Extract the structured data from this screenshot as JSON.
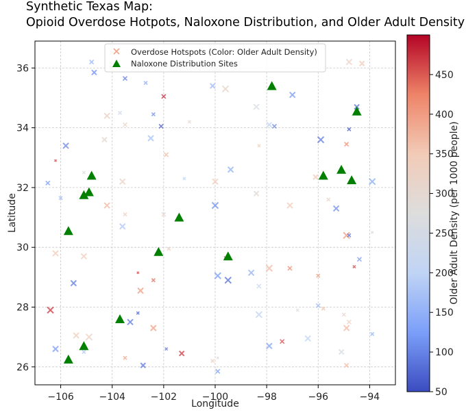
{
  "chart_data": {
    "type": "scatter",
    "title_line1": "Synthetic Texas Map:",
    "title_line2": "Opioid Overdose Hotpots, Naloxone Distribution, and Older Adult Density",
    "xlabel": "Longitude",
    "ylabel": "Latitude",
    "xlim": [
      -107.0,
      -93.0
    ],
    "ylim": [
      25.4,
      36.9
    ],
    "xticks": [
      -106,
      -104,
      -102,
      -100,
      -98,
      -96,
      -94
    ],
    "xtick_labels": [
      "−106",
      "−104",
      "−102",
      "−100",
      "−98",
      "−96",
      "−94"
    ],
    "yticks": [
      26,
      28,
      30,
      32,
      34,
      36
    ],
    "ytick_labels": [
      "26",
      "28",
      "30",
      "32",
      "34",
      "36"
    ],
    "grid": true,
    "legend": {
      "position": "top",
      "hotspots_label": "Overdose Hotspots (Color: Older Adult Density)",
      "naloxone_label": "Naloxone Distribution Sites"
    },
    "colorbar": {
      "label": "Older Adult Density (per 1000 people)",
      "min": 50,
      "max": 500,
      "ticks": [
        50,
        100,
        150,
        200,
        250,
        300,
        350,
        400,
        450
      ],
      "tick_labels": [
        "50",
        "100",
        "150",
        "200",
        "250",
        "300",
        "350",
        "400",
        "450"
      ],
      "colormap": [
        "#3b4cc0",
        "#7b9ff9",
        "#c0d4f5",
        "#dddddd",
        "#f2cbb7",
        "#ee8468",
        "#b40426"
      ]
    },
    "series": [
      {
        "name": "Overdose Hotspots",
        "marker": "x",
        "points": [
          {
            "x": -104.8,
            "y": 36.2,
            "d": 150,
            "s": 6
          },
          {
            "x": -104.7,
            "y": 35.85,
            "d": 110,
            "s": 7
          },
          {
            "x": -103.5,
            "y": 35.65,
            "d": 90,
            "s": 6
          },
          {
            "x": -102.7,
            "y": 35.5,
            "d": 140,
            "s": 5
          },
          {
            "x": -102.0,
            "y": 35.05,
            "d": 480,
            "s": 6
          },
          {
            "x": -100.1,
            "y": 35.4,
            "d": 160,
            "s": 7
          },
          {
            "x": -99.6,
            "y": 35.3,
            "d": 320,
            "s": 9
          },
          {
            "x": -98.4,
            "y": 34.7,
            "d": 260,
            "s": 8
          },
          {
            "x": -97.0,
            "y": 35.1,
            "d": 120,
            "s": 8
          },
          {
            "x": -94.8,
            "y": 36.2,
            "d": 320,
            "s": 8
          },
          {
            "x": -94.3,
            "y": 36.15,
            "d": 350,
            "s": 7
          },
          {
            "x": -94.5,
            "y": 34.7,
            "d": 80,
            "s": 7
          },
          {
            "x": -104.2,
            "y": 34.4,
            "d": 330,
            "s": 8
          },
          {
            "x": -103.7,
            "y": 34.5,
            "d": 230,
            "s": 5
          },
          {
            "x": -103.5,
            "y": 34.1,
            "d": 320,
            "s": 6
          },
          {
            "x": -102.4,
            "y": 34.45,
            "d": 110,
            "s": 5
          },
          {
            "x": -102.1,
            "y": 34.05,
            "d": 60,
            "s": 6
          },
          {
            "x": -102.5,
            "y": 33.65,
            "d": 170,
            "s": 8
          },
          {
            "x": -101.0,
            "y": 34.2,
            "d": 300,
            "s": 4
          },
          {
            "x": -97.9,
            "y": 34.1,
            "d": 200,
            "s": 7
          },
          {
            "x": -97.7,
            "y": 34.05,
            "d": 100,
            "s": 6
          },
          {
            "x": -94.8,
            "y": 33.95,
            "d": 60,
            "s": 5
          },
          {
            "x": -105.8,
            "y": 33.4,
            "d": 100,
            "s": 8
          },
          {
            "x": -104.3,
            "y": 33.6,
            "d": 300,
            "s": 7
          },
          {
            "x": -101.9,
            "y": 33.1,
            "d": 370,
            "s": 6
          },
          {
            "x": -98.3,
            "y": 33.4,
            "d": 330,
            "s": 4
          },
          {
            "x": -95.9,
            "y": 33.6,
            "d": 90,
            "s": 9
          },
          {
            "x": -94.9,
            "y": 33.45,
            "d": 420,
            "s": 6
          },
          {
            "x": -106.2,
            "y": 32.9,
            "d": 460,
            "s": 3
          },
          {
            "x": -105.1,
            "y": 32.5,
            "d": 280,
            "s": 4
          },
          {
            "x": -106.5,
            "y": 32.15,
            "d": 120,
            "s": 6
          },
          {
            "x": -106.0,
            "y": 31.65,
            "d": 160,
            "s": 5
          },
          {
            "x": -103.6,
            "y": 32.2,
            "d": 330,
            "s": 8
          },
          {
            "x": -101.2,
            "y": 32.3,
            "d": 200,
            "s": 4
          },
          {
            "x": -100.0,
            "y": 32.2,
            "d": 340,
            "s": 8
          },
          {
            "x": -99.4,
            "y": 32.6,
            "d": 150,
            "s": 8
          },
          {
            "x": -96.1,
            "y": 32.35,
            "d": 350,
            "s": 7
          },
          {
            "x": -93.9,
            "y": 32.2,
            "d": 140,
            "s": 9
          },
          {
            "x": -104.2,
            "y": 31.4,
            "d": 370,
            "s": 8
          },
          {
            "x": -103.5,
            "y": 31.1,
            "d": 330,
            "s": 5
          },
          {
            "x": -103.6,
            "y": 30.7,
            "d": 180,
            "s": 8
          },
          {
            "x": -102.0,
            "y": 31.1,
            "d": 310,
            "s": 6
          },
          {
            "x": -100.0,
            "y": 31.4,
            "d": 110,
            "s": 9
          },
          {
            "x": -98.4,
            "y": 31.8,
            "d": 290,
            "s": 7
          },
          {
            "x": -97.1,
            "y": 31.4,
            "d": 350,
            "s": 8
          },
          {
            "x": -95.6,
            "y": 31.6,
            "d": 320,
            "s": 5
          },
          {
            "x": -95.3,
            "y": 31.3,
            "d": 110,
            "s": 8
          },
          {
            "x": -94.9,
            "y": 30.4,
            "d": 400,
            "s": 9
          },
          {
            "x": -94.8,
            "y": 30.4,
            "d": 80,
            "s": 5
          },
          {
            "x": -93.9,
            "y": 30.5,
            "d": 300,
            "s": 3
          },
          {
            "x": -106.2,
            "y": 29.8,
            "d": 350,
            "s": 8
          },
          {
            "x": -105.1,
            "y": 29.7,
            "d": 340,
            "s": 8
          },
          {
            "x": -101.8,
            "y": 29.95,
            "d": 330,
            "s": 5
          },
          {
            "x": -99.6,
            "y": 29.65,
            "d": 460,
            "s": 4
          },
          {
            "x": -98.6,
            "y": 29.15,
            "d": 150,
            "s": 8
          },
          {
            "x": -97.9,
            "y": 29.3,
            "d": 370,
            "s": 9
          },
          {
            "x": -97.1,
            "y": 29.3,
            "d": 420,
            "s": 6
          },
          {
            "x": -96.0,
            "y": 29.05,
            "d": 400,
            "s": 5
          },
          {
            "x": -94.4,
            "y": 29.6,
            "d": 120,
            "s": 6
          },
          {
            "x": -94.6,
            "y": 29.35,
            "d": 460,
            "s": 4
          },
          {
            "x": -103.0,
            "y": 29.15,
            "d": 460,
            "s": 3
          },
          {
            "x": -105.5,
            "y": 28.8,
            "d": 90,
            "s": 8
          },
          {
            "x": -102.9,
            "y": 28.55,
            "d": 400,
            "s": 8
          },
          {
            "x": -102.4,
            "y": 28.9,
            "d": 440,
            "s": 5
          },
          {
            "x": -99.9,
            "y": 29.05,
            "d": 120,
            "s": 9
          },
          {
            "x": -99.5,
            "y": 28.9,
            "d": 80,
            "s": 9
          },
          {
            "x": -98.3,
            "y": 28.7,
            "d": 220,
            "s": 6
          },
          {
            "x": -106.4,
            "y": 27.9,
            "d": 470,
            "s": 9
          },
          {
            "x": -103.0,
            "y": 27.8,
            "d": 70,
            "s": 4
          },
          {
            "x": -98.3,
            "y": 27.75,
            "d": 200,
            "s": 9
          },
          {
            "x": -96.0,
            "y": 28.05,
            "d": 160,
            "s": 6
          },
          {
            "x": -95.8,
            "y": 27.95,
            "d": 360,
            "s": 5
          },
          {
            "x": -96.8,
            "y": 27.9,
            "d": 280,
            "s": 4
          },
          {
            "x": -95.0,
            "y": 27.75,
            "d": 310,
            "s": 5
          },
          {
            "x": -103.3,
            "y": 27.5,
            "d": 90,
            "s": 8
          },
          {
            "x": -102.4,
            "y": 27.3,
            "d": 400,
            "s": 8
          },
          {
            "x": -105.4,
            "y": 27.05,
            "d": 340,
            "s": 8
          },
          {
            "x": -104.9,
            "y": 27.0,
            "d": 330,
            "s": 9
          },
          {
            "x": -96.4,
            "y": 26.95,
            "d": 200,
            "s": 8
          },
          {
            "x": -94.9,
            "y": 27.3,
            "d": 370,
            "s": 8
          },
          {
            "x": -94.8,
            "y": 27.5,
            "d": 330,
            "s": 6
          },
          {
            "x": -93.9,
            "y": 27.1,
            "d": 150,
            "s": 5
          },
          {
            "x": -97.9,
            "y": 26.7,
            "d": 130,
            "s": 8
          },
          {
            "x": -97.4,
            "y": 26.85,
            "d": 460,
            "s": 6
          },
          {
            "x": -106.2,
            "y": 26.6,
            "d": 120,
            "s": 8
          },
          {
            "x": -105.1,
            "y": 26.5,
            "d": 180,
            "s": 5
          },
          {
            "x": -103.5,
            "y": 26.3,
            "d": 390,
            "s": 5
          },
          {
            "x": -101.9,
            "y": 26.6,
            "d": 90,
            "s": 4
          },
          {
            "x": -101.3,
            "y": 26.45,
            "d": 470,
            "s": 7
          },
          {
            "x": -102.8,
            "y": 26.05,
            "d": 90,
            "s": 7
          },
          {
            "x": -100.1,
            "y": 26.2,
            "d": 330,
            "s": 5
          },
          {
            "x": -99.9,
            "y": 26.3,
            "d": 280,
            "s": 3
          },
          {
            "x": -99.9,
            "y": 25.85,
            "d": 120,
            "s": 6
          },
          {
            "x": -95.1,
            "y": 26.5,
            "d": 260,
            "s": 7
          },
          {
            "x": -94.9,
            "y": 26.05,
            "d": 370,
            "s": 6
          }
        ]
      },
      {
        "name": "Naloxone Distribution Sites",
        "marker": "triangle",
        "color": "#007f00",
        "points": [
          {
            "x": -97.8,
            "y": 35.4
          },
          {
            "x": -94.5,
            "y": 34.55
          },
          {
            "x": -104.8,
            "y": 32.4
          },
          {
            "x": -95.8,
            "y": 32.4
          },
          {
            "x": -95.1,
            "y": 32.6
          },
          {
            "x": -94.7,
            "y": 32.25
          },
          {
            "x": -104.9,
            "y": 31.85
          },
          {
            "x": -105.1,
            "y": 31.75
          },
          {
            "x": -105.7,
            "y": 30.55
          },
          {
            "x": -101.4,
            "y": 31.0
          },
          {
            "x": -102.2,
            "y": 29.85
          },
          {
            "x": -99.5,
            "y": 29.7
          },
          {
            "x": -103.7,
            "y": 27.6
          },
          {
            "x": -105.1,
            "y": 26.7
          },
          {
            "x": -105.7,
            "y": 26.25
          }
        ]
      }
    ]
  }
}
